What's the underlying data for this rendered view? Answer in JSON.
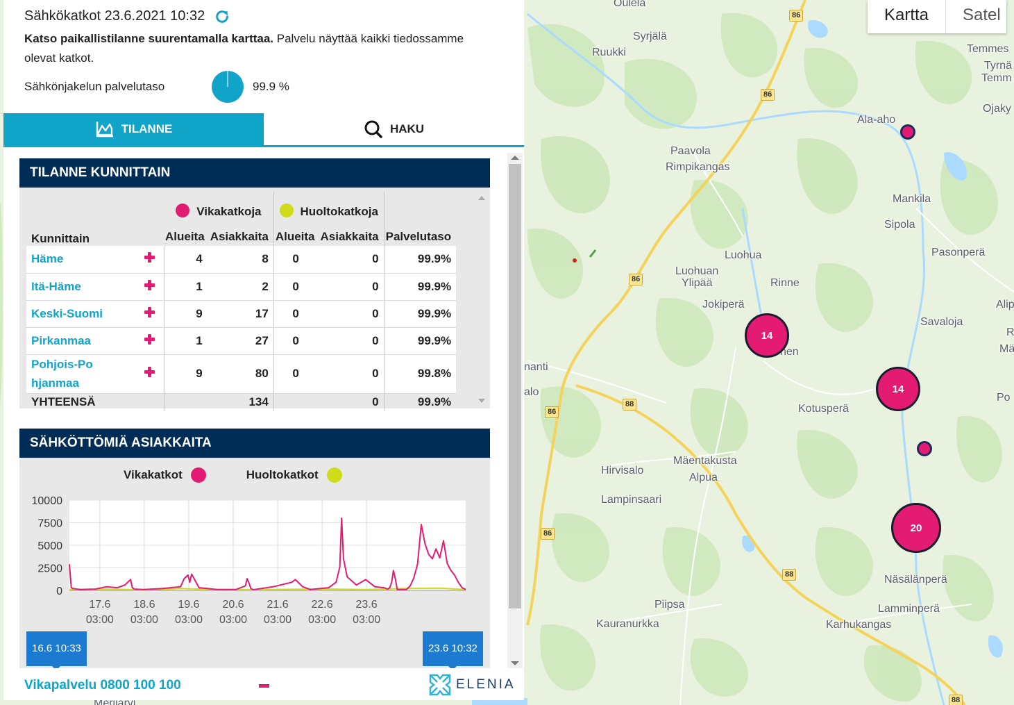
{
  "header": {
    "title": "Sähkökatkot 23.6.2021 10:32",
    "desc_bold": "Katso paikallistilanne suurentamalla karttaa.",
    "desc_rest": " Palvelu näyttää kaikki tiedossamme olevat katkot.",
    "service_label": "Sähkönjakelun palvelutaso",
    "service_value": "99.9 %",
    "service_fraction": 0.999
  },
  "tabs": [
    {
      "label": "TILANNE",
      "icon": "chart-icon",
      "active": true
    },
    {
      "label": "HAKU",
      "icon": "search-icon",
      "active": false
    }
  ],
  "table": {
    "title": "TILANNE KUNNITTAIN",
    "group_fault": "Vikakatkoja",
    "group_maint": "Huoltokatkoja",
    "col_municipality": "Kunnittain",
    "col_areas": "Alueita",
    "col_customers": "Asiakkaita",
    "col_service": "Palvelutaso",
    "rows": [
      {
        "name": "Häme",
        "f_areas": "4",
        "f_cust": "8",
        "m_areas": "0",
        "m_cust": "0",
        "service": "99.9%"
      },
      {
        "name": "Itä-Häme",
        "f_areas": "1",
        "f_cust": "2",
        "m_areas": "0",
        "m_cust": "0",
        "service": "99.9%"
      },
      {
        "name": "Keski-Suomi",
        "f_areas": "9",
        "f_cust": "17",
        "m_areas": "0",
        "m_cust": "0",
        "service": "99.9%"
      },
      {
        "name": "Pirkanmaa",
        "f_areas": "1",
        "f_cust": "27",
        "m_areas": "0",
        "m_cust": "0",
        "service": "99.9%"
      },
      {
        "name": "Pohjois-Pohjanmaa",
        "f_areas": "9",
        "f_cust": "80",
        "m_areas": "0",
        "m_cust": "0",
        "service": "99.8%"
      }
    ],
    "total": {
      "label": "YHTEENSÄ",
      "f_cust": "134",
      "m_cust": "0",
      "service": "99.9%"
    }
  },
  "chart_data": {
    "type": "line",
    "title": "SÄHKÖTTÖMIÄ ASIAKKAITA",
    "legend": [
      "Vikakatkot",
      "Huoltokatkot"
    ],
    "ylim": [
      0,
      10000
    ],
    "yticks": [
      "10000",
      "7500",
      "5000",
      "2500",
      "0"
    ],
    "xticks": [
      {
        "date": "17.6",
        "time": "03:00"
      },
      {
        "date": "18.6",
        "time": "03:00"
      },
      {
        "date": "19.6",
        "time": "03:00"
      },
      {
        "date": "20.6",
        "time": "03:00"
      },
      {
        "date": "21.6",
        "time": "03:00"
      },
      {
        "date": "22.6",
        "time": "03:00"
      },
      {
        "date": "23.6",
        "time": "03:00"
      }
    ],
    "series": [
      {
        "name": "Vikakatkot",
        "color": "#e31b72",
        "x_hours": [
          0,
          1,
          2,
          6,
          14,
          20,
          26,
          30,
          33,
          34,
          35,
          40,
          50,
          60,
          62,
          64,
          65,
          66,
          70,
          80,
          90,
          95,
          96,
          97,
          98,
          99,
          100,
          110,
          120,
          122,
          124,
          126,
          130,
          140,
          144,
          146,
          147,
          148,
          150,
          155,
          160,
          165,
          170,
          171,
          172,
          173,
          174,
          175,
          176,
          177,
          178,
          180,
          182,
          184,
          186,
          188,
          190,
          192,
          194,
          196,
          198,
          200,
          202,
          204,
          206,
          208,
          210,
          212,
          214
        ],
        "values": [
          2900,
          300,
          200,
          100,
          150,
          400,
          300,
          600,
          1200,
          300,
          150,
          100,
          200,
          400,
          1300,
          1700,
          900,
          1800,
          300,
          100,
          100,
          500,
          1300,
          800,
          200,
          100,
          100,
          400,
          900,
          1200,
          800,
          400,
          100,
          300,
          900,
          2600,
          8000,
          3500,
          1500,
          600,
          1200,
          400,
          300,
          200,
          150,
          300,
          900,
          2200,
          1300,
          100,
          100,
          100,
          100,
          500,
          1400,
          2900,
          7300,
          5200,
          4000,
          3500,
          4600,
          3600,
          5500,
          3000,
          2200,
          1700,
          900,
          300,
          100
        ]
      },
      {
        "name": "Huoltokatkot",
        "color": "#cfdc1a",
        "x_hours": [
          0,
          20,
          40,
          60,
          80,
          100,
          120,
          140,
          160,
          180,
          200,
          214
        ],
        "values": [
          100,
          150,
          50,
          200,
          100,
          80,
          120,
          150,
          100,
          200,
          250,
          100
        ]
      }
    ],
    "range_start": "16.6 10:33",
    "range_end": "23.6 10:32"
  },
  "footer": {
    "phone": "Vikapalvelu 0800 100 100",
    "logo": "ELENIA"
  },
  "map": {
    "type_tabs": [
      "Kartta",
      "Satel"
    ],
    "places": [
      {
        "name": "Syrjälä"
      },
      {
        "name": "Ruukki"
      },
      {
        "name": "Temmes"
      },
      {
        "name": "Tyrnä"
      },
      {
        "name": "Temm"
      },
      {
        "name": "Ojaky"
      },
      {
        "name": "Ala-aho"
      },
      {
        "name": "Paavola"
      },
      {
        "name": "Rimpikangas"
      },
      {
        "name": "Mankila"
      },
      {
        "name": "Sipola"
      },
      {
        "name": "Pasonperä"
      },
      {
        "name": "Luohua"
      },
      {
        "name": "Luohuan"
      },
      {
        "name": "Ylipää"
      },
      {
        "name": "Rinne"
      },
      {
        "name": "Alip"
      },
      {
        "name": "Jokiperä"
      },
      {
        "name": "Savaloja"
      },
      {
        "name": "R"
      },
      {
        "name": "Mä"
      },
      {
        "name": "nen"
      },
      {
        "name": "nanti"
      },
      {
        "name": "alo"
      },
      {
        "name": "Kotusperä"
      },
      {
        "name": "Po"
      },
      {
        "name": "Mäentakusta"
      },
      {
        "name": "Alpua"
      },
      {
        "name": "Hirvisalo"
      },
      {
        "name": "Lampinsaari"
      },
      {
        "name": "Näsälänperä"
      },
      {
        "name": "Piipsa"
      },
      {
        "name": "Lamminperä"
      },
      {
        "name": "Kauranurkka"
      },
      {
        "name": "Karhukangas"
      },
      {
        "name": "Oulela"
      },
      {
        "name": "Merijärvi"
      }
    ],
    "road_numbers": [
      "86",
      "86",
      "86",
      "86",
      "86",
      "86",
      "88",
      "88",
      "88"
    ],
    "clusters": [
      "14",
      "14",
      "20"
    ]
  }
}
